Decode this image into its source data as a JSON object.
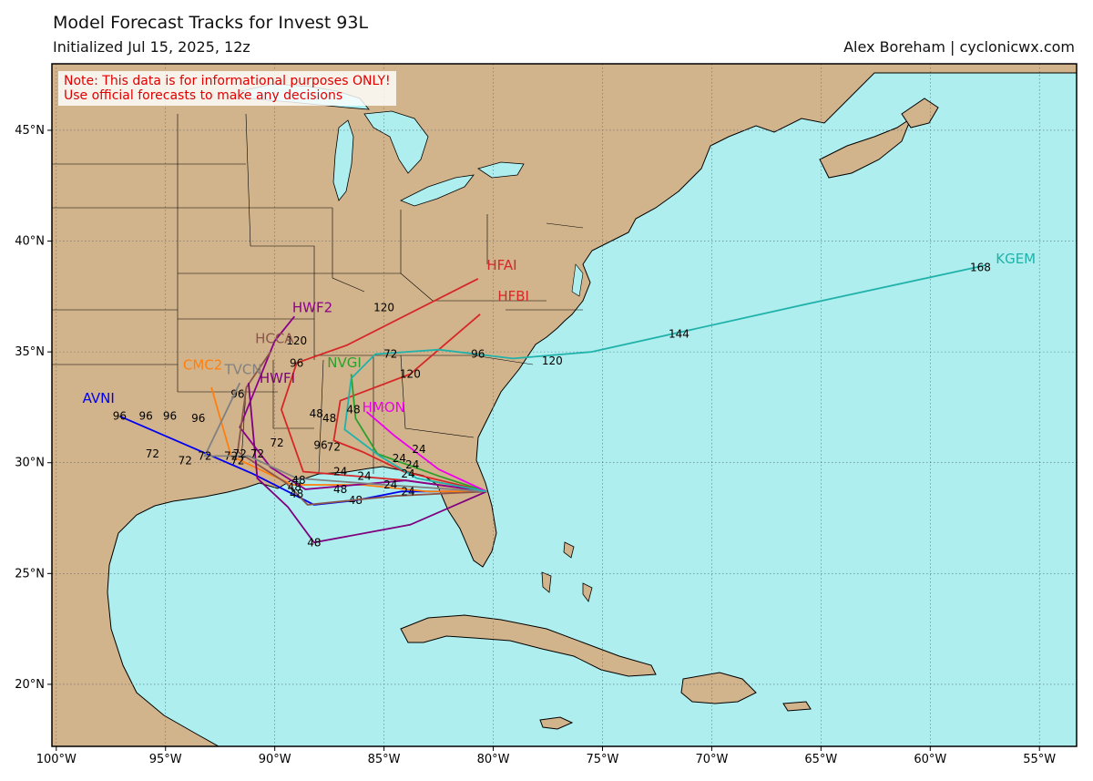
{
  "header": {
    "title": "Model Forecast Tracks  for Invest 93L",
    "subtitle": "Initialized Jul 15, 2025, 12z",
    "credit": "Alex Boreham | cyclonicwx.com"
  },
  "note": {
    "line1": "Note: This data is for informational purposes ONLY!",
    "line2": "Use official forecasts to make any decisions"
  },
  "map": {
    "lon_range": [
      -100.2,
      -53.3
    ],
    "lat_range": [
      17.2,
      48
    ],
    "lon_ticks": [
      -100,
      -95,
      -90,
      -85,
      -80,
      -75,
      -70,
      -65,
      -60,
      -55
    ],
    "lon_tick_labels": [
      "100°W",
      "95°W",
      "90°W",
      "85°W",
      "80°W",
      "75°W",
      "70°W",
      "65°W",
      "60°W",
      "55°W"
    ],
    "lat_ticks": [
      20,
      25,
      30,
      35,
      40,
      45
    ],
    "lat_tick_labels": [
      "20°N",
      "25°N",
      "30°N",
      "35°N",
      "40°N",
      "45°N"
    ],
    "colors": {
      "ocean": "#aeeeee",
      "land": "#d2b48c",
      "lake": "#aeeeee",
      "grid": "#5b6e8a"
    }
  },
  "tracks": [
    {
      "name": "AVNI",
      "color": "#0000ee",
      "points": [
        [
          -80.3,
          28.7
        ],
        [
          -84.2,
          28.7
        ],
        [
          -86.3,
          28.3
        ],
        [
          -88.2,
          28.1
        ],
        [
          -91.0,
          29.5
        ],
        [
          -97.1,
          32.1
        ]
      ],
      "labels": [
        [
          -86.3,
          28.3,
          "48"
        ],
        [
          -97.1,
          32.1,
          "96"
        ]
      ],
      "name_pos": [
        -98.8,
        32.7
      ]
    },
    {
      "name": "CMC2",
      "color": "#ff7f0e",
      "points": [
        [
          -80.3,
          28.7
        ],
        [
          -83.0,
          28.7
        ],
        [
          -86.0,
          29.0
        ],
        [
          -89.2,
          29.0
        ],
        [
          -92.0,
          30.3
        ],
        [
          -92.9,
          33.4
        ]
      ],
      "labels": [
        [
          -92.0,
          30.3,
          "72"
        ]
      ],
      "name_pos": [
        -94.2,
        34.2
      ]
    },
    {
      "name": "HFAI",
      "color": "#d62728",
      "points": [
        [
          -80.3,
          28.7
        ],
        [
          -84.0,
          29.2
        ],
        [
          -88.7,
          29.6
        ],
        [
          -89.7,
          32.4
        ],
        [
          -89.0,
          34.5
        ],
        [
          -86.7,
          35.3
        ],
        [
          -80.7,
          38.3
        ]
      ],
      "labels": [
        [
          -89.0,
          34.5,
          "96"
        ],
        [
          -85.0,
          37.0,
          "120"
        ]
      ],
      "name_pos": [
        -80.3,
        38.7
      ]
    },
    {
      "name": "HFBI",
      "color": "#d62728",
      "points": [
        [
          -80.3,
          28.7
        ],
        [
          -84.1,
          29.6
        ],
        [
          -86.0,
          30.5
        ],
        [
          -87.3,
          31.0
        ],
        [
          -87.0,
          32.8
        ],
        [
          -83.8,
          34.0
        ],
        [
          -80.6,
          36.7
        ]
      ],
      "labels": [
        [
          -83.8,
          34.0,
          "120"
        ]
      ],
      "name_pos": [
        -79.8,
        37.3
      ]
    },
    {
      "name": "HWF2",
      "color": "#8b008b",
      "points": [
        [
          -80.3,
          28.7
        ],
        [
          -84.0,
          29.2
        ],
        [
          -88.6,
          28.8
        ],
        [
          -90.2,
          29.8
        ],
        [
          -91.6,
          31.6
        ],
        [
          -90.0,
          35.5
        ],
        [
          -89.1,
          36.6
        ]
      ],
      "labels": [
        [
          -89.0,
          35.5,
          "120"
        ]
      ],
      "name_pos": [
        -89.2,
        36.8
      ]
    },
    {
      "name": "HCCA",
      "color": "#8c564b",
      "points": [
        [
          -80.3,
          28.7
        ],
        [
          -84.5,
          28.5
        ],
        [
          -88.5,
          28.1
        ],
        [
          -89.5,
          29.1
        ],
        [
          -91.7,
          30.5
        ],
        [
          -91.3,
          33.4
        ],
        [
          -90.2,
          35.0
        ]
      ],
      "labels": [
        [
          -91.7,
          33.1,
          "96"
        ]
      ],
      "name_pos": [
        -90.9,
        35.4
      ]
    },
    {
      "name": "HWFI",
      "color": "#7f007f",
      "points": [
        [
          -80.3,
          28.7
        ],
        [
          -83.8,
          27.2
        ],
        [
          -88.2,
          26.4
        ],
        [
          -89.4,
          28.0
        ],
        [
          -90.8,
          29.3
        ],
        [
          -91.2,
          33.6
        ]
      ],
      "labels": [
        [
          -88.2,
          26.4,
          "48"
        ]
      ],
      "name_pos": [
        -90.7,
        33.6
      ]
    },
    {
      "name": "NVGI",
      "color": "#2ca02c",
      "points": [
        [
          -80.3,
          28.7
        ],
        [
          -82.5,
          29.4
        ],
        [
          -85.3,
          30.4
        ],
        [
          -86.3,
          32.0
        ],
        [
          -86.5,
          34.0
        ]
      ],
      "labels": [],
      "name_pos": [
        -87.6,
        34.3
      ]
    },
    {
      "name": "HMON",
      "color": "#ee00ee",
      "points": [
        [
          -80.3,
          28.7
        ],
        [
          -82.5,
          29.7
        ],
        [
          -84.5,
          31.2
        ],
        [
          -85.8,
          32.3
        ]
      ],
      "labels": [],
      "name_pos": [
        -86.0,
        32.3
      ]
    },
    {
      "name": "TVCN",
      "color": "#808080",
      "points": [
        [
          -80.3,
          28.7
        ],
        [
          -85.0,
          29.0
        ],
        [
          -89.0,
          29.3
        ],
        [
          -91.2,
          30.3
        ],
        [
          -93.2,
          30.3
        ],
        [
          -91.6,
          33.6
        ]
      ],
      "labels": [
        [
          -93.2,
          30.3,
          "72"
        ]
      ],
      "name_pos": [
        -92.3,
        34.0
      ]
    },
    {
      "name": "KGEM",
      "color": "#20b2aa",
      "points": [
        [
          -80.3,
          28.7
        ],
        [
          -83.5,
          29.3
        ],
        [
          -85.2,
          30.3
        ],
        [
          -86.8,
          31.5
        ],
        [
          -86.5,
          33.8
        ],
        [
          -85.4,
          34.9
        ],
        [
          -82.5,
          35.1
        ],
        [
          -79.1,
          34.7
        ],
        [
          -75.5,
          35.0
        ],
        [
          -65.0,
          37.3
        ],
        [
          -57.5,
          38.9
        ]
      ],
      "labels": [
        [
          -84.7,
          34.9,
          "72"
        ],
        [
          -80.7,
          34.9,
          "96"
        ],
        [
          -77.3,
          34.6,
          "120"
        ],
        [
          -71.5,
          35.8,
          "144"
        ],
        [
          -57.7,
          38.8,
          "168"
        ]
      ],
      "name_pos": [
        -57.0,
        39.0
      ]
    }
  ],
  "extra_labels": [
    [
      -87.0,
      29.6,
      "24"
    ],
    [
      -83.9,
      29.5,
      "24"
    ],
    [
      -83.7,
      29.9,
      "24"
    ],
    [
      -83.9,
      28.7,
      "24"
    ],
    [
      -84.7,
      29.0,
      "24"
    ],
    [
      -84.3,
      30.2,
      "24"
    ],
    [
      -83.4,
      30.6,
      "24"
    ],
    [
      -85.9,
      29.4,
      "24"
    ],
    [
      -87.0,
      28.8,
      "48"
    ],
    [
      -88.9,
      29.2,
      "48"
    ],
    [
      -89.0,
      28.6,
      "48"
    ],
    [
      -88.1,
      32.2,
      "48"
    ],
    [
      -87.5,
      32.0,
      "48"
    ],
    [
      -86.4,
      32.4,
      "48"
    ],
    [
      -89.1,
      28.9,
      "48"
    ],
    [
      -87.3,
      30.7,
      "72"
    ],
    [
      -87.9,
      30.8,
      "96"
    ],
    [
      -89.9,
      30.9,
      "72"
    ],
    [
      -91.6,
      30.4,
      "72"
    ],
    [
      -90.8,
      30.4,
      "72"
    ],
    [
      -91.7,
      30.1,
      "72"
    ],
    [
      -94.1,
      30.1,
      "72"
    ],
    [
      -95.6,
      30.4,
      "72"
    ],
    [
      -95.9,
      32.1,
      "96"
    ],
    [
      -94.8,
      32.1,
      "96"
    ],
    [
      -93.5,
      32.0,
      "96"
    ]
  ]
}
